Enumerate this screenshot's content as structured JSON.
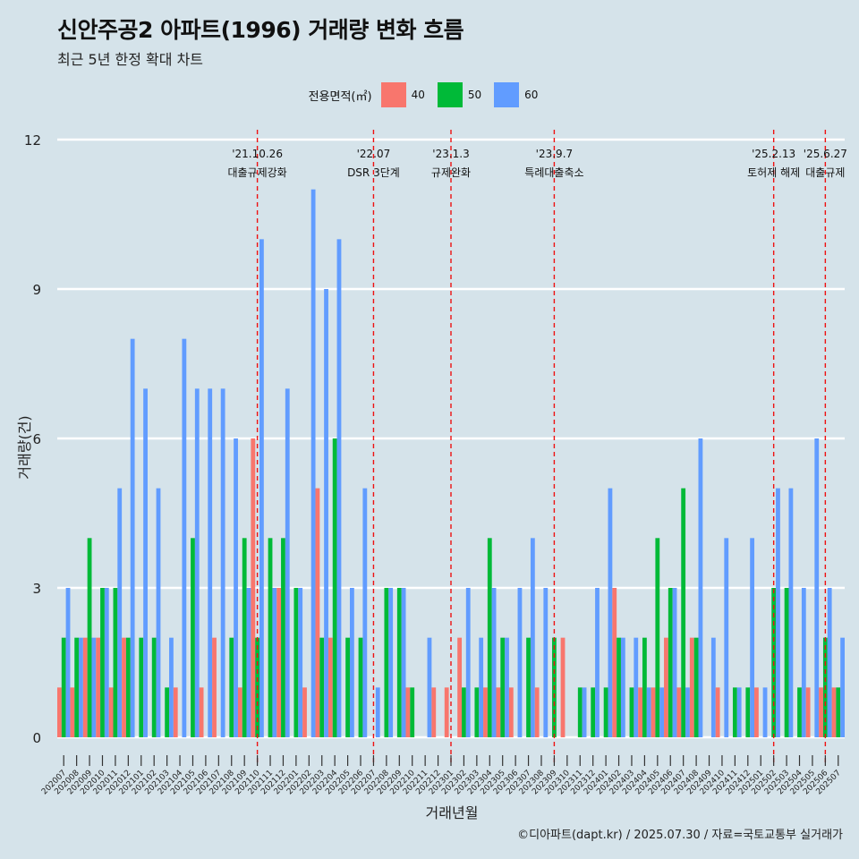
{
  "title": "신안주공2 아파트(1996) 거래량 변화 흐름",
  "subtitle": "최근 5년 한정 확대 차트",
  "caption": "©디아파트(dapt.kr) / 2025.07.30 / 자료=국토교통부 실거래가",
  "legend": {
    "title": "전용면적(㎡)",
    "items": [
      {
        "label": "40",
        "color": "#f8766d"
      },
      {
        "label": "50",
        "color": "#00ba38"
      },
      {
        "label": "60",
        "color": "#619cff"
      }
    ]
  },
  "chart_data": {
    "type": "bar",
    "title": "신안주공2 아파트(1996) 거래량 변화 흐름",
    "subtitle": "최근 5년 한정 확대 차트",
    "xlabel": "거래년월",
    "ylabel": "거래량(건)",
    "ylim": [
      0,
      12
    ],
    "yticks": [
      0,
      3,
      6,
      9,
      12
    ],
    "grid": true,
    "legend_position": "top",
    "categories": [
      "202007",
      "202008",
      "202009",
      "202010",
      "202011",
      "202012",
      "202101",
      "202102",
      "202103",
      "202104",
      "202105",
      "202106",
      "202107",
      "202108",
      "202109",
      "202110",
      "202111",
      "202112",
      "202201",
      "202202",
      "202203",
      "202204",
      "202205",
      "202206",
      "202207",
      "202208",
      "202209",
      "202210",
      "202211",
      "202212",
      "202301",
      "202302",
      "202303",
      "202304",
      "202305",
      "202306",
      "202307",
      "202308",
      "202309",
      "202310",
      "202311",
      "202312",
      "202401",
      "202402",
      "202403",
      "202404",
      "202405",
      "202406",
      "202407",
      "202408",
      "202409",
      "202410",
      "202411",
      "202412",
      "202501",
      "202502",
      "202503",
      "202504",
      "202505",
      "202506",
      "202507"
    ],
    "xtick_labels": [
      "202007",
      "202008",
      "202009",
      "202010",
      "202011",
      "202012",
      "202101",
      "202102",
      "202103",
      "202104",
      "202105",
      "202106",
      "202107",
      "202108",
      "202109",
      "202110",
      "202111",
      "202112",
      "202201",
      "202202",
      "202203",
      "202204",
      "202205",
      "202206",
      "202207",
      "202208",
      "202209",
      "202210",
      "202211",
      "202212",
      "202301",
      "202302",
      "202303",
      "202304",
      "202305",
      "202306",
      "202307",
      "202308",
      "202309",
      "202310",
      "202311",
      "202312",
      "202401",
      "202402",
      "202403",
      "202404",
      "202405",
      "202406",
      "202407",
      "202408",
      "202409",
      "202410",
      "202411",
      "202412",
      "202501",
      "202502",
      "202503",
      "202504",
      "202505",
      "202506",
      "202507"
    ],
    "series": [
      {
        "name": "40",
        "color": "#f8766d",
        "values": [
          1,
          1,
          2,
          2,
          1,
          2,
          0,
          0,
          0,
          1,
          0,
          1,
          2,
          0,
          1,
          6,
          0,
          3,
          0,
          1,
          5,
          2,
          0,
          0,
          0,
          0,
          0,
          1,
          0,
          1,
          1,
          2,
          0,
          1,
          1,
          1,
          0,
          1,
          0,
          2,
          0,
          0,
          0,
          3,
          0,
          1,
          1,
          2,
          1,
          2,
          0,
          1,
          0,
          0,
          1,
          0,
          0,
          0,
          1,
          1,
          1
        ]
      },
      {
        "name": "50",
        "color": "#00ba38",
        "values": [
          2,
          2,
          4,
          3,
          3,
          2,
          2,
          2,
          1,
          0,
          4,
          0,
          0,
          2,
          4,
          2,
          4,
          4,
          3,
          0,
          2,
          6,
          2,
          2,
          0,
          3,
          3,
          1,
          0,
          0,
          0,
          1,
          1,
          4,
          2,
          0,
          2,
          0,
          2,
          0,
          1,
          1,
          1,
          2,
          1,
          2,
          4,
          3,
          5,
          2,
          0,
          0,
          1,
          1,
          0,
          3,
          3,
          1,
          0,
          2,
          1
        ]
      },
      {
        "name": "60",
        "color": "#619cff",
        "values": [
          3,
          2,
          2,
          3,
          5,
          8,
          7,
          5,
          2,
          8,
          7,
          7,
          7,
          6,
          3,
          10,
          3,
          7,
          3,
          11,
          9,
          10,
          3,
          5,
          1,
          3,
          3,
          0,
          2,
          0,
          0,
          3,
          2,
          3,
          2,
          3,
          4,
          3,
          0,
          0,
          1,
          3,
          5,
          2,
          2,
          1,
          1,
          3,
          1,
          6,
          2,
          4,
          1,
          4,
          1,
          5,
          5,
          3,
          6,
          3,
          2
        ]
      }
    ],
    "annotations": [
      {
        "date": "'21.10.26",
        "label": "대출규제강화",
        "category": "202110"
      },
      {
        "date": "'22.07",
        "label": "DSR 3단계",
        "category": "202207"
      },
      {
        "date": "'23.1.3",
        "label": "규제완화",
        "category": "202301"
      },
      {
        "date": "'23.9.7",
        "label": "특례대출축소",
        "category": "202309"
      },
      {
        "date": "'25.2.13",
        "label": "토허제 해제",
        "category": "202502"
      },
      {
        "date": "'25.6.27",
        "label": "대출규제",
        "category": "202506"
      }
    ]
  }
}
